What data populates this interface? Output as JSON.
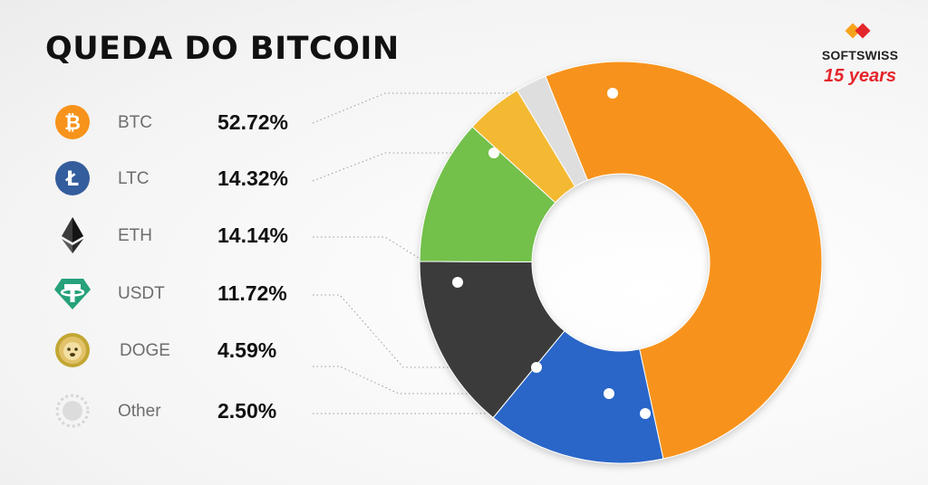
{
  "title": "QUEDA DO BITCOIN",
  "logo": {
    "brand": "SOFTSWISS",
    "years": "15 years"
  },
  "chart_data": {
    "type": "pie",
    "title": "QUEDA DO BITCOIN",
    "categories": [
      "BTC",
      "LTC",
      "ETH",
      "USDT",
      "DOGE",
      "Other"
    ],
    "values": [
      52.72,
      14.32,
      14.14,
      11.72,
      4.59,
      2.5
    ],
    "labels": [
      "52.72%",
      "14.32%",
      "14.14%",
      "11.72%",
      "4.59%",
      "2.50%"
    ],
    "colors": [
      "#f7931a",
      "#2966c8",
      "#3a3a3a",
      "#73c04b",
      "#f4b933",
      "#dedede"
    ],
    "legend_position": "left",
    "donut": true
  },
  "rows": [
    {
      "code": "BTC",
      "pct": "52.72%",
      "icon": "bitcoin-icon"
    },
    {
      "code": "LTC",
      "pct": "14.32%",
      "icon": "litecoin-icon"
    },
    {
      "code": "ETH",
      "pct": "14.14%",
      "icon": "ethereum-icon"
    },
    {
      "code": "USDT",
      "pct": "11.72%",
      "icon": "tether-icon"
    },
    {
      "code": "DOGE",
      "pct": "4.59%",
      "icon": "dogecoin-icon"
    },
    {
      "code": "Other",
      "pct": "2.50%",
      "icon": "other-coin-icon"
    }
  ]
}
